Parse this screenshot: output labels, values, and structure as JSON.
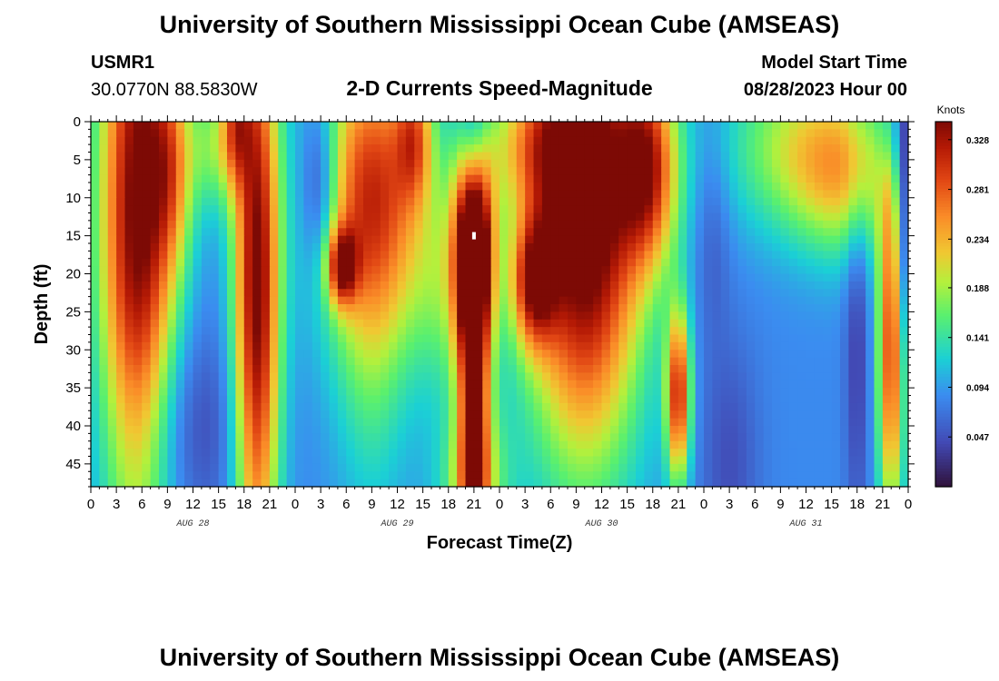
{
  "header": {
    "title": "University of Southern Mississippi Ocean Cube (AMSEAS)",
    "station_id": "USMR1",
    "location": "30.0770N  88.5830W",
    "plot_title": "2-D Currents Speed-Magnitude",
    "model_start_label": "Model Start Time",
    "model_start_value": "08/28/2023 Hour 00"
  },
  "footer": {
    "title": "University of Southern Mississippi Ocean Cube (AMSEAS)"
  },
  "chart_data": {
    "type": "heatmap",
    "title": "2-D Currents Speed-Magnitude",
    "xlabel": "Forecast Time(Z)",
    "ylabel": "Depth (ft)",
    "xlim": [
      0,
      96
    ],
    "ylim": [
      48,
      0
    ],
    "x_tick_hours": [
      0,
      3,
      6,
      9,
      12,
      15,
      18,
      21,
      24,
      27,
      30,
      33,
      36,
      39,
      42,
      45,
      48,
      51,
      54,
      57,
      60,
      63,
      66,
      69,
      72,
      75,
      78,
      81,
      84,
      87,
      90,
      93,
      96
    ],
    "x_tick_labels": [
      "0",
      "3",
      "6",
      "9",
      "12",
      "15",
      "18",
      "21",
      "0",
      "3",
      "6",
      "9",
      "12",
      "15",
      "18",
      "21",
      "0",
      "3",
      "6",
      "9",
      "12",
      "15",
      "18",
      "21",
      "0",
      "3",
      "6",
      "9",
      "12",
      "15",
      "18",
      "21",
      "0"
    ],
    "day_labels": [
      {
        "hour": 12,
        "text": "AUG 28"
      },
      {
        "hour": 36,
        "text": "AUG 29"
      },
      {
        "hour": 60,
        "text": "AUG 30"
      },
      {
        "hour": 84,
        "text": "AUG 31"
      }
    ],
    "y_ticks": [
      0,
      5,
      10,
      15,
      20,
      25,
      30,
      35,
      40,
      45
    ],
    "y_tick_labels": [
      "0",
      "5",
      "10",
      "15",
      "20",
      "25",
      "30",
      "35",
      "40",
      "45"
    ],
    "colorbar": {
      "unit": "Knots",
      "min": 0.0,
      "max": 0.345,
      "ticks": [
        0.328,
        0.281,
        0.234,
        0.188,
        0.141,
        0.094,
        0.047
      ],
      "tick_labels": [
        "0.328",
        "0.281",
        "0.234",
        "0.188",
        "0.141",
        "0.094",
        "0.047"
      ],
      "colormap": "turbo"
    },
    "features": [
      {
        "t": 5.5,
        "d": 12,
        "st": 3.2,
        "sd": 30,
        "a": 0.27
      },
      {
        "t": 9.5,
        "d": 6,
        "st": 1.8,
        "sd": 9,
        "a": 0.1
      },
      {
        "t": 10.5,
        "d": 40,
        "st": 5.5,
        "sd": 10,
        "a": -0.05
      },
      {
        "t": 19.5,
        "d": 22,
        "st": 1.9,
        "sd": 28,
        "a": 0.27
      },
      {
        "t": 17,
        "d": 0,
        "st": 1.2,
        "sd": 6,
        "a": 0.12
      },
      {
        "t": 14.5,
        "d": 3,
        "st": 2.0,
        "sd": 6,
        "a": 0.08
      },
      {
        "t": 27,
        "d": 8,
        "st": 1.6,
        "sd": 8,
        "a": -0.09
      },
      {
        "t": 33,
        "d": 9,
        "st": 4.5,
        "sd": 14,
        "a": 0.21
      },
      {
        "t": 29.5,
        "d": 19,
        "st": 1.2,
        "sd": 3.5,
        "a": 0.18
      },
      {
        "t": 33,
        "d": 32,
        "st": 3.0,
        "sd": 16,
        "a": 0.05
      },
      {
        "t": 38,
        "d": 2,
        "st": 1.5,
        "sd": 6,
        "a": 0.12
      },
      {
        "t": 42,
        "d": 22,
        "st": 3.0,
        "sd": 10,
        "a": 0.07
      },
      {
        "t": 45,
        "d": 4,
        "st": 1.2,
        "sd": 7,
        "a": -0.1
      },
      {
        "t": 45,
        "d": 48,
        "st": 3.0,
        "sd": 8,
        "a": 0.1
      },
      {
        "t": 45,
        "d": 16,
        "st": 1.6,
        "sd": 10,
        "a": 0.32
      },
      {
        "t": 45,
        "d": 40,
        "st": 1.3,
        "sd": 16,
        "a": 0.2
      },
      {
        "t": 52,
        "d": 21,
        "st": 1.8,
        "sd": 6,
        "a": 0.18
      },
      {
        "t": 58,
        "d": 12,
        "st": 4.8,
        "sd": 22,
        "a": 0.3
      },
      {
        "t": 52,
        "d": 3,
        "st": 4.0,
        "sd": 6,
        "a": 0.1
      },
      {
        "t": 65.5,
        "d": 6,
        "st": 2.5,
        "sd": 9,
        "a": 0.19
      },
      {
        "t": 69,
        "d": 36,
        "st": 1.0,
        "sd": 8,
        "a": 0.22
      },
      {
        "t": 73,
        "d": 15,
        "st": 1.5,
        "sd": 10,
        "a": -0.03
      },
      {
        "t": 75,
        "d": 45,
        "st": 2.5,
        "sd": 12,
        "a": -0.04
      },
      {
        "t": 81,
        "d": 3,
        "st": 5.0,
        "sd": 8,
        "a": 0.08
      },
      {
        "t": 88.5,
        "d": 6,
        "st": 4.5,
        "sd": 8,
        "a": 0.14
      },
      {
        "t": 90,
        "d": 30,
        "st": 1.0,
        "sd": 18,
        "a": -0.05
      },
      {
        "t": 94,
        "d": 30,
        "st": 1.1,
        "sd": 16,
        "a": 0.21
      },
      {
        "t": 94,
        "d": 3,
        "st": 1.4,
        "sd": 5,
        "a": -0.04
      },
      {
        "t": 95.5,
        "d": 10,
        "st": 0.7,
        "sd": 14,
        "a": -0.09
      }
    ],
    "marker": {
      "hour": 45,
      "depth": 15
    }
  }
}
